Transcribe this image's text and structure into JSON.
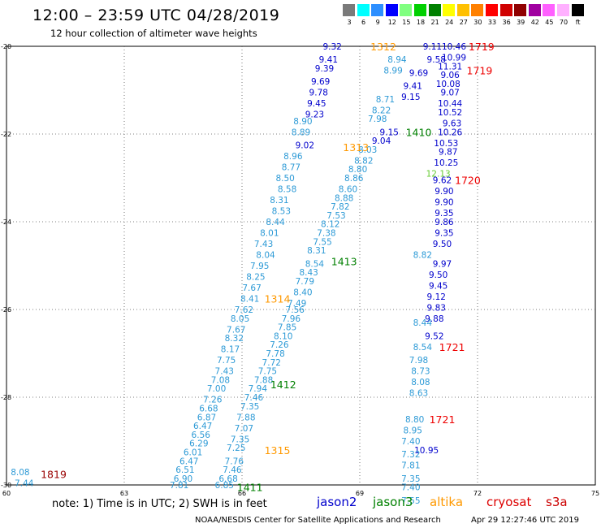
{
  "title": "12:00 – 23:59 UTC 04/28/2019",
  "subtitle": "12 hour collection of altimeter wave heights",
  "colorbar": [
    {
      "label": "3",
      "color": "#7a7a7a"
    },
    {
      "label": "6",
      "color": "#00ffff"
    },
    {
      "label": "9",
      "color": "#2d8fff"
    },
    {
      "label": "12",
      "color": "#0000ff"
    },
    {
      "label": "15",
      "color": "#80ff80"
    },
    {
      "label": "18",
      "color": "#00d000"
    },
    {
      "label": "21",
      "color": "#008000"
    },
    {
      "label": "24",
      "color": "#ffff00"
    },
    {
      "label": "27",
      "color": "#ffc000"
    },
    {
      "label": "30",
      "color": "#ff8000"
    },
    {
      "label": "33",
      "color": "#ff0000"
    },
    {
      "label": "36",
      "color": "#d00000"
    },
    {
      "label": "39",
      "color": "#900000"
    },
    {
      "label": "42",
      "color": "#a000a0"
    },
    {
      "label": "45",
      "color": "#ff60ff"
    },
    {
      "label": "70",
      "color": "#ffb0ff"
    },
    {
      "label": "ft",
      "color": "#000000"
    }
  ],
  "footer": {
    "note": "note: 1) Time is in UTC; 2) SWH is in feet",
    "satellites": [
      {
        "name": "jason2",
        "color": "#0000cc"
      },
      {
        "name": "jason3",
        "color": "#008000"
      },
      {
        "name": "altika",
        "color": "#ff9900"
      },
      {
        "name": "cryosat",
        "color": "#dd0000"
      },
      {
        "name": "s3a",
        "color": "#cc0000"
      }
    ],
    "credit": "NOAA/NESDIS Center for Satellite Applications and Research",
    "timestamp": "Apr 29 12:27:46 UTC 2019"
  },
  "chart_data": {
    "type": "scatter",
    "xlim": [
      60,
      75
    ],
    "ylim": [
      -30,
      -20
    ],
    "x_ticks": [
      "60",
      "63",
      "66",
      "69",
      "72",
      "75"
    ],
    "y_ticks": [
      "-20",
      "-22",
      "-24",
      "-26",
      "-28",
      "-30"
    ],
    "grid": true,
    "series": [
      {
        "name": "jason2",
        "color": "#0000cc",
        "points": [
          [
            68.3,
            -20.0,
            "9.32"
          ],
          [
            68.2,
            -20.3,
            "9.41"
          ],
          [
            68.1,
            -20.5,
            "9.39"
          ],
          [
            68.0,
            -20.8,
            "9.69"
          ],
          [
            67.95,
            -21.05,
            "9.78"
          ],
          [
            67.9,
            -21.3,
            "9.45"
          ],
          [
            67.85,
            -21.55,
            "9.23"
          ],
          [
            67.6,
            -22.25,
            "9.02"
          ],
          [
            70.85,
            -20.0,
            "9.11"
          ],
          [
            70.95,
            -20.3,
            "9.58"
          ],
          [
            70.5,
            -20.6,
            "9.69"
          ],
          [
            70.35,
            -20.9,
            "9.41"
          ],
          [
            70.3,
            -21.15,
            "9.15"
          ],
          [
            69.75,
            -21.95,
            "9.15"
          ],
          [
            69.55,
            -22.15,
            "9.04"
          ],
          [
            71.4,
            -20.0,
            "10.46"
          ],
          [
            71.4,
            -20.25,
            "10.99"
          ],
          [
            71.3,
            -20.45,
            "11.31"
          ],
          [
            71.3,
            -20.65,
            "9.06"
          ],
          [
            71.25,
            -20.85,
            "10.08"
          ],
          [
            71.3,
            -21.05,
            "9.07"
          ],
          [
            71.3,
            -21.3,
            "10.44"
          ],
          [
            71.3,
            -21.5,
            "10.52"
          ],
          [
            71.35,
            -21.75,
            "9.63"
          ],
          [
            71.3,
            -21.95,
            "10.26"
          ],
          [
            71.2,
            -22.2,
            "10.53"
          ],
          [
            71.25,
            -22.4,
            "9.87"
          ],
          [
            71.2,
            -22.65,
            "10.25"
          ],
          [
            71.1,
            -23.05,
            "9.62"
          ],
          [
            71.15,
            -23.3,
            "9.90"
          ],
          [
            71.15,
            -23.55,
            "9.90"
          ],
          [
            71.15,
            -23.8,
            "9.35"
          ],
          [
            71.15,
            -24.0,
            "9.86"
          ],
          [
            71.15,
            -24.25,
            "9.35"
          ],
          [
            71.1,
            -24.5,
            "9.50"
          ],
          [
            71.1,
            -24.95,
            "9.97"
          ],
          [
            71.0,
            -25.2,
            "9.50"
          ],
          [
            71.0,
            -25.45,
            "9.45"
          ],
          [
            70.95,
            -25.7,
            "9.12"
          ],
          [
            70.95,
            -25.95,
            "9.83"
          ],
          [
            70.9,
            -26.2,
            "9.88"
          ],
          [
            70.9,
            -26.6,
            "9.52"
          ],
          [
            70.7,
            -29.2,
            "10.95"
          ]
        ]
      },
      {
        "name": "jason2",
        "color": "#2d9ad6",
        "points": [
          [
            67.55,
            -21.7,
            "8.90"
          ],
          [
            67.5,
            -21.95,
            "8.89"
          ],
          [
            67.3,
            -22.5,
            "8.96"
          ],
          [
            67.25,
            -22.75,
            "8.77"
          ],
          [
            67.1,
            -23.0,
            "8.50"
          ],
          [
            67.15,
            -23.25,
            "8.58"
          ],
          [
            66.95,
            -23.5,
            "8.31"
          ],
          [
            67.0,
            -23.75,
            "8.53"
          ],
          [
            66.85,
            -24.0,
            "8.44"
          ],
          [
            66.7,
            -24.25,
            "8.01"
          ],
          [
            66.55,
            -24.5,
            "7.43"
          ],
          [
            66.6,
            -24.75,
            "8.04"
          ],
          [
            66.45,
            -25.0,
            "7.95"
          ],
          [
            66.35,
            -25.25,
            "8.25"
          ],
          [
            66.25,
            -25.5,
            "7.67"
          ],
          [
            66.2,
            -25.75,
            "8.41"
          ],
          [
            66.05,
            -26.0,
            "7.62"
          ],
          [
            65.95,
            -26.2,
            "8.05"
          ],
          [
            65.85,
            -26.45,
            "7.67"
          ],
          [
            65.8,
            -26.65,
            "8.32"
          ],
          [
            65.7,
            -26.9,
            "8.17"
          ],
          [
            65.6,
            -27.15,
            "7.75"
          ],
          [
            65.55,
            -27.4,
            "7.43"
          ],
          [
            65.45,
            -27.6,
            "7.08"
          ],
          [
            65.35,
            -27.8,
            "7.00"
          ],
          [
            65.25,
            -28.05,
            "7.26"
          ],
          [
            65.15,
            -28.25,
            "6.68"
          ],
          [
            65.1,
            -28.45,
            "6.87"
          ],
          [
            65.0,
            -28.65,
            "6.47"
          ],
          [
            64.95,
            -28.85,
            "6.56"
          ],
          [
            64.9,
            -29.05,
            "6.29"
          ],
          [
            64.75,
            -29.25,
            "6.01"
          ],
          [
            64.65,
            -29.45,
            "6.47"
          ],
          [
            64.55,
            -29.65,
            "6.51"
          ],
          [
            64.5,
            -29.85,
            "6.90"
          ],
          [
            64.4,
            -30.0,
            "7.81"
          ],
          [
            60.35,
            -29.7,
            "8.08"
          ],
          [
            60.45,
            -29.95,
            "7.44"
          ],
          [
            69.95,
            -20.3,
            "8.94"
          ],
          [
            69.85,
            -20.55,
            "8.99"
          ],
          [
            69.65,
            -21.2,
            "8.71"
          ],
          [
            69.55,
            -21.45,
            "8.22"
          ],
          [
            69.45,
            -21.65,
            "7.98"
          ],
          [
            69.2,
            -22.35,
            "8.03"
          ],
          [
            69.1,
            -22.6,
            "8.82"
          ],
          [
            68.95,
            -22.8,
            "8.80"
          ],
          [
            68.85,
            -23.0,
            "8.86"
          ],
          [
            68.7,
            -23.25,
            "8.60"
          ],
          [
            68.6,
            -23.45,
            "8.88"
          ],
          [
            68.5,
            -23.65,
            "7.82"
          ],
          [
            68.4,
            -23.85,
            "7.53"
          ],
          [
            68.25,
            -24.05,
            "8.12"
          ],
          [
            68.15,
            -24.25,
            "7.38"
          ],
          [
            68.05,
            -24.45,
            "7.55"
          ],
          [
            67.9,
            -24.65,
            "8.31"
          ],
          [
            67.85,
            -24.95,
            "8.54"
          ],
          [
            67.7,
            -25.15,
            "8.43"
          ],
          [
            67.6,
            -25.35,
            "7.79"
          ],
          [
            67.55,
            -25.6,
            "8.40"
          ],
          [
            67.4,
            -25.85,
            "7.49"
          ],
          [
            67.35,
            -26.0,
            "7.56"
          ],
          [
            67.25,
            -26.2,
            "7.96"
          ],
          [
            67.15,
            -26.4,
            "7.85"
          ],
          [
            67.05,
            -26.6,
            "8.10"
          ],
          [
            66.95,
            -26.8,
            "7.26"
          ],
          [
            66.85,
            -27.0,
            "7.78"
          ],
          [
            66.75,
            -27.2,
            "7.72"
          ],
          [
            66.65,
            -27.4,
            "7.75"
          ],
          [
            66.55,
            -27.6,
            "7.88"
          ],
          [
            66.4,
            -27.8,
            "7.94"
          ],
          [
            66.3,
            -28.0,
            "7.46"
          ],
          [
            66.2,
            -28.2,
            "7.35"
          ],
          [
            66.1,
            -28.45,
            "7.88"
          ],
          [
            66.05,
            -28.7,
            "7.07"
          ],
          [
            65.95,
            -28.95,
            "7.35"
          ],
          [
            65.85,
            -29.15,
            "7.25"
          ],
          [
            65.8,
            -29.45,
            "7.76"
          ],
          [
            65.75,
            -29.65,
            "7.46"
          ],
          [
            65.65,
            -29.85,
            "6.68"
          ],
          [
            65.55,
            -30.0,
            "6.85"
          ],
          [
            70.6,
            -24.75,
            "8.82"
          ],
          [
            70.6,
            -26.3,
            "8.44"
          ],
          [
            70.6,
            -26.85,
            "8.54"
          ],
          [
            70.5,
            -27.15,
            "7.98"
          ],
          [
            70.55,
            -27.4,
            "8.73"
          ],
          [
            70.55,
            -27.65,
            "8.08"
          ],
          [
            70.5,
            -27.9,
            "8.63"
          ],
          [
            70.4,
            -28.5,
            "8.80"
          ],
          [
            70.35,
            -28.75,
            "8.95"
          ],
          [
            70.3,
            -29.0,
            "7.40"
          ],
          [
            70.3,
            -29.3,
            "7.32"
          ],
          [
            70.3,
            -29.55,
            "7.81"
          ],
          [
            70.3,
            -29.85,
            "7.35"
          ],
          [
            70.3,
            -30.05,
            "7.40"
          ],
          [
            70.3,
            -30.35,
            "7.55"
          ]
        ]
      },
      {
        "name": "jason3",
        "color": "#66cc33",
        "points": [
          [
            71.0,
            -22.9,
            "12.13"
          ]
        ]
      },
      {
        "name": "jason3",
        "color": "#008000",
        "points": []
      }
    ],
    "annotations": [
      {
        "text": "1312",
        "x": 69.6,
        "y": -20.0,
        "color": "#ff9900"
      },
      {
        "text": "1313",
        "x": 68.9,
        "y": -22.3,
        "color": "#ff9900"
      },
      {
        "text": "1314",
        "x": 66.9,
        "y": -25.75,
        "color": "#ff9900"
      },
      {
        "text": "1315",
        "x": 66.9,
        "y": -29.2,
        "color": "#ff9900"
      },
      {
        "text": "1410",
        "x": 70.5,
        "y": -21.95,
        "color": "#008000"
      },
      {
        "text": "1413",
        "x": 68.6,
        "y": -24.9,
        "color": "#008000"
      },
      {
        "text": "1412",
        "x": 67.05,
        "y": -27.7,
        "color": "#008000"
      },
      {
        "text": "1411",
        "x": 66.2,
        "y": -30.05,
        "color": "#008000"
      },
      {
        "text": "1719",
        "x": 72.1,
        "y": -20.0,
        "color": "#ee0000"
      },
      {
        "text": "1719",
        "x": 72.05,
        "y": -20.55,
        "color": "#ee0000"
      },
      {
        "text": "1720",
        "x": 71.75,
        "y": -23.05,
        "color": "#ee0000"
      },
      {
        "text": "1721",
        "x": 71.35,
        "y": -26.85,
        "color": "#ee0000"
      },
      {
        "text": "1721",
        "x": 71.1,
        "y": -28.5,
        "color": "#ee0000"
      },
      {
        "text": "1819",
        "x": 61.2,
        "y": -29.75,
        "color": "#990000"
      }
    ]
  }
}
